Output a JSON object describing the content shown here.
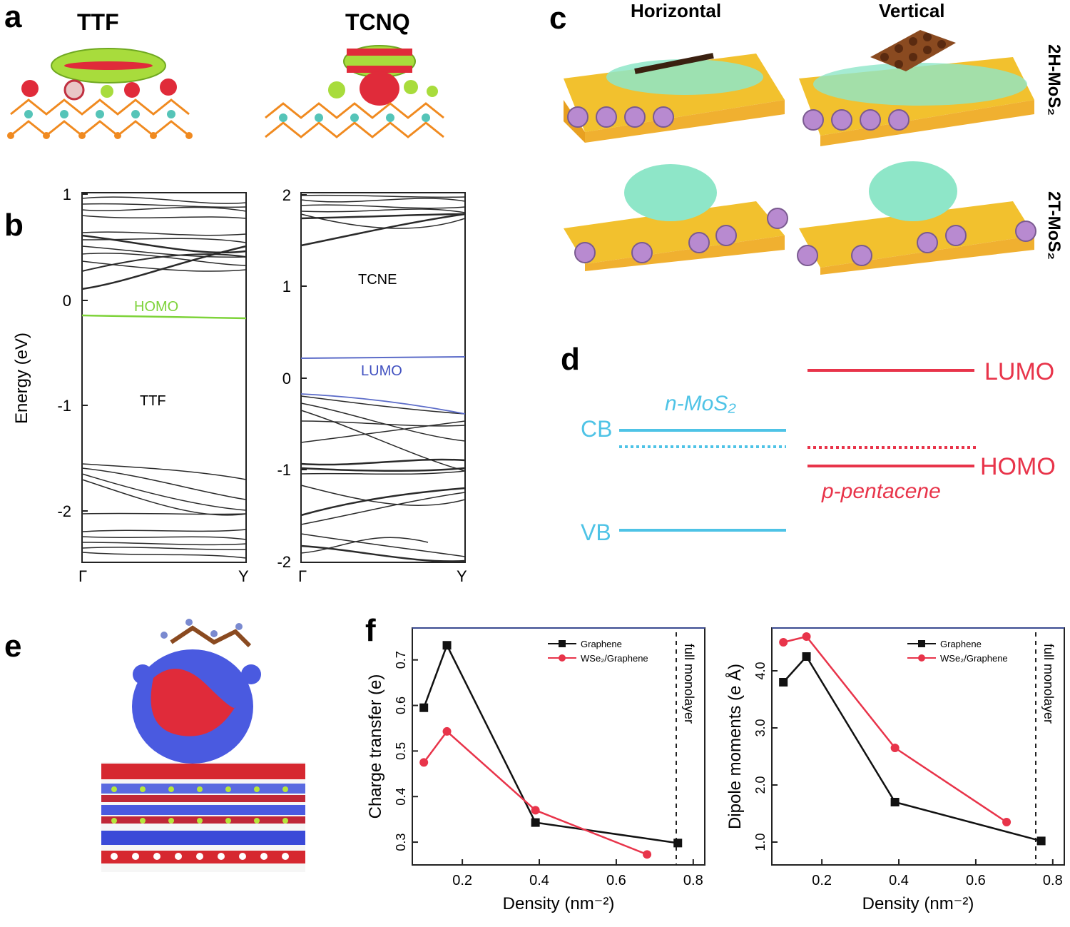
{
  "panel_a": {
    "label": "a",
    "titles": [
      "TTF",
      "TCNQ"
    ]
  },
  "panel_b": {
    "label": "b",
    "ylabel": "Energy (eV)",
    "left": {
      "yticks": [
        "1",
        "0",
        "-1",
        "-2"
      ],
      "xticks": [
        "Γ",
        "Y"
      ],
      "level_label": "HOMO",
      "molecule_label": "TTF"
    },
    "right": {
      "yticks": [
        "2",
        "1",
        "0",
        "-1",
        "-2"
      ],
      "xticks": [
        "Γ",
        "Y"
      ],
      "level_label": "LUMO",
      "molecule_label": "TCNE"
    }
  },
  "panel_c": {
    "label": "c",
    "columns": [
      "Horizontal",
      "Vertical"
    ],
    "rows": [
      "2H-MoS₂",
      "2T-MoS₂"
    ]
  },
  "panel_d": {
    "label": "d",
    "n_label": "n-MoS₂",
    "p_label": "p-pentacene",
    "cb": "CB",
    "vb": "VB",
    "lumo": "LUMO",
    "homo": "HOMO",
    "colors": {
      "mos2": "#4ec3e6",
      "pentacene": "#e8344a"
    }
  },
  "panel_e": {
    "label": "e"
  },
  "panel_f": {
    "label": "f",
    "chart_data": [
      {
        "type": "line",
        "xlabel": "Density (nm⁻²)",
        "ylabel": "Charge transfer (e)",
        "xlim": [
          0.07,
          0.83
        ],
        "ylim": [
          0.25,
          0.77
        ],
        "xticks": [
          "0.2",
          "0.4",
          "0.6",
          "0.8"
        ],
        "yticks": [
          "0.3",
          "0.4",
          "0.5",
          "0.6",
          "0.7"
        ],
        "annotation": "full monolayer",
        "series": [
          {
            "name": "Graphene",
            "color": "#111111",
            "marker": "square",
            "x": [
              0.1,
              0.16,
              0.39,
              0.76
            ],
            "y": [
              0.595,
              0.732,
              0.343,
              0.298
            ]
          },
          {
            "name": "WSe₂/Graphene",
            "color": "#e8344a",
            "marker": "circle",
            "x": [
              0.1,
              0.16,
              0.39,
              0.68
            ],
            "y": [
              0.475,
              0.543,
              0.37,
              0.273
            ]
          }
        ]
      },
      {
        "type": "line",
        "xlabel": "Density (nm⁻²)",
        "ylabel": "Dipole moments (e Å)",
        "xlim": [
          0.07,
          0.83
        ],
        "ylim": [
          0.6,
          4.75
        ],
        "xticks": [
          "0.2",
          "0.4",
          "0.6",
          "0.8"
        ],
        "yticks": [
          "1.0",
          "2.0",
          "3.0",
          "4.0"
        ],
        "annotation": "full monolayer",
        "series": [
          {
            "name": "Graphene",
            "color": "#111111",
            "marker": "square",
            "x": [
              0.1,
              0.16,
              0.39,
              0.77
            ],
            "y": [
              3.8,
              4.25,
              1.7,
              1.02
            ]
          },
          {
            "name": "WSe₂/Graphene",
            "color": "#e8344a",
            "marker": "circle",
            "x": [
              0.1,
              0.16,
              0.39,
              0.68
            ],
            "y": [
              4.5,
              4.6,
              2.65,
              1.35
            ]
          }
        ]
      }
    ]
  }
}
